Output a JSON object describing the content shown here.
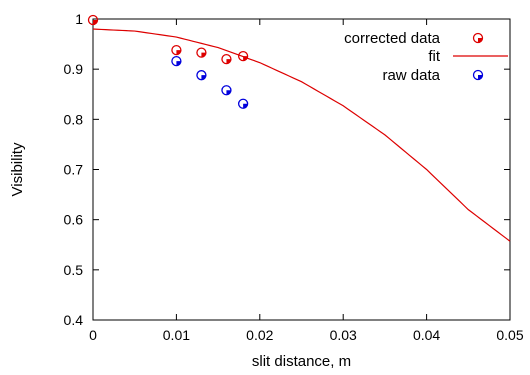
{
  "chart_data": {
    "type": "scatter",
    "xlabel": "slit distance, m",
    "ylabel": "Visibility",
    "xlim": [
      0,
      0.05
    ],
    "ylim": [
      0.4,
      1.0
    ],
    "xticks": [
      "0",
      "0.01",
      "0.02",
      "0.03",
      "0.04",
      "0.05"
    ],
    "yticks": [
      "0.4",
      "0.5",
      "0.6",
      "0.7",
      "0.8",
      "0.9",
      "1"
    ],
    "grid": false,
    "legend_position": "top-right",
    "series": [
      {
        "name": "corrected data",
        "kind": "points",
        "color": "#dd0000",
        "x": [
          0,
          0.01,
          0.013,
          0.016,
          0.018
        ],
        "y": [
          0.998,
          0.938,
          0.933,
          0.92,
          0.926
        ]
      },
      {
        "name": "fit",
        "kind": "line",
        "color": "#dd0000",
        "x": [
          0,
          0.005,
          0.01,
          0.015,
          0.02,
          0.025,
          0.03,
          0.035,
          0.04,
          0.045,
          0.05
        ],
        "y": [
          0.98,
          0.976,
          0.964,
          0.943,
          0.913,
          0.875,
          0.827,
          0.769,
          0.7,
          0.62,
          0.557
        ]
      },
      {
        "name": "raw data",
        "kind": "points",
        "color": "#0000dd",
        "x": [
          0.01,
          0.013,
          0.016,
          0.018
        ],
        "y": [
          0.916,
          0.888,
          0.858,
          0.831
        ]
      }
    ]
  }
}
